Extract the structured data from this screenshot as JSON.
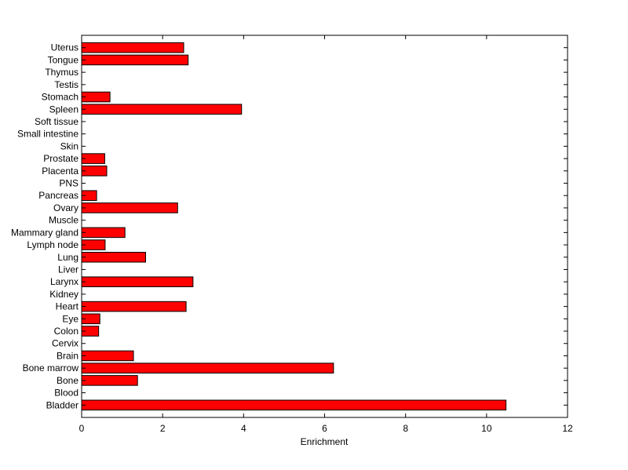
{
  "chart_data": {
    "type": "bar",
    "orientation": "horizontal",
    "title": "",
    "xlabel": "Enrichment",
    "ylabel": "",
    "xlim": [
      0,
      12
    ],
    "xticks": [
      0,
      2,
      4,
      6,
      8,
      10,
      12
    ],
    "grid": false,
    "bar_color": "#ff0000",
    "bar_edge_color": "#000000",
    "categories": [
      "Bladder",
      "Blood",
      "Bone",
      "Bone marrow",
      "Brain",
      "Cervix",
      "Colon",
      "Eye",
      "Heart",
      "Kidney",
      "Larynx",
      "Liver",
      "Lung",
      "Lymph node",
      "Mammary gland",
      "Muscle",
      "Ovary",
      "Pancreas",
      "PNS",
      "Placenta",
      "Prostate",
      "Skin",
      "Small intestine",
      "Soft tissue",
      "Spleen",
      "Stomach",
      "Testis",
      "Thymus",
      "Tongue",
      "Uterus"
    ],
    "values": [
      10.48,
      0,
      1.38,
      6.22,
      1.28,
      0,
      0.42,
      0.45,
      2.58,
      0,
      2.75,
      0,
      1.58,
      0.58,
      1.07,
      0,
      2.37,
      0.37,
      0,
      0.62,
      0.57,
      0,
      0,
      0,
      3.95,
      0.7,
      0,
      0,
      2.63,
      2.52
    ]
  }
}
